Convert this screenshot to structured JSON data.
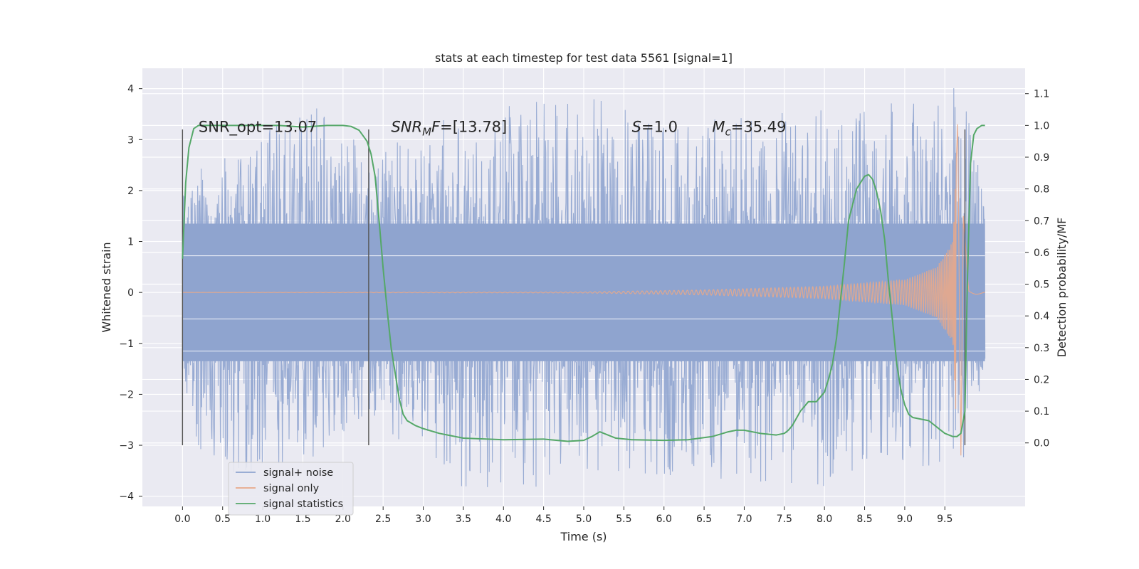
{
  "chart_data": {
    "type": "line",
    "title": "stats at each timestep for test data 5561 [signal=1]",
    "xlabel": "Time (s)",
    "ylabel": "Whitened strain",
    "ylabel_right": "Detection probability/MF",
    "xlim": [
      -0.5,
      10.5
    ],
    "ylim": [
      -4.2,
      4.4
    ],
    "ylim_right": [
      -0.2,
      1.18
    ],
    "x_ticks": [
      "0.0",
      "0.5",
      "1.0",
      "1.5",
      "2.0",
      "2.5",
      "3.0",
      "3.5",
      "4.0",
      "4.5",
      "5.0",
      "5.5",
      "6.0",
      "6.5",
      "7.0",
      "7.5",
      "8.0",
      "8.5",
      "9.0",
      "9.5"
    ],
    "y_ticks": [
      "4",
      "3",
      "2",
      "1",
      "0",
      "−1",
      "−2",
      "−3",
      "−4"
    ],
    "y_ticks_right": [
      "1.1",
      "1.0",
      "0.9",
      "0.8",
      "0.7",
      "0.6",
      "0.5",
      "0.4",
      "0.3",
      "0.2",
      "0.1",
      "0.0"
    ],
    "grid": true,
    "legend_position": "lower-left",
    "legend": [
      "signal+ noise",
      "signal only",
      "signal statistics"
    ],
    "annotations": [
      {
        "parts": [
          {
            "t": "SNR_opt=13.07",
            "i": false
          }
        ],
        "x": 0.2,
        "y": 3.15
      },
      {
        "parts": [
          {
            "t": "SNR",
            "i": true
          },
          {
            "t": "M",
            "i": true,
            "sub": true
          },
          {
            "t": "F",
            "i": true
          },
          {
            "t": "=[13.78]",
            "i": false
          }
        ],
        "x": 2.6,
        "y": 3.15
      },
      {
        "parts": [
          {
            "t": "S",
            "i": true
          },
          {
            "t": "=1.0",
            "i": false
          }
        ],
        "x": 5.6,
        "y": 3.15
      },
      {
        "parts": [
          {
            "t": "M",
            "i": true
          },
          {
            "t": "c",
            "i": true,
            "sub": true
          },
          {
            "t": "=35.49",
            "i": false
          }
        ],
        "x": 6.6,
        "y": 3.15
      }
    ],
    "vertical_markers_x": [
      0.0,
      2.32,
      9.75
    ],
    "vertical_markers_yrange": [
      -3.0,
      3.2
    ],
    "series": [
      {
        "name": "signal+ noise",
        "color": "#8fa4cf",
        "x_range": [
          0.0,
          10.0
        ],
        "envelope_upper": [
          [
            0.0,
            2.3
          ],
          [
            1.0,
            3.1
          ],
          [
            1.8,
            3.9
          ],
          [
            2.3,
            2.6
          ],
          [
            3.0,
            3.3
          ],
          [
            4.8,
            4.0
          ],
          [
            6.0,
            3.3
          ],
          [
            8.0,
            3.6
          ],
          [
            9.5,
            3.8
          ],
          [
            9.66,
            4.1
          ],
          [
            9.72,
            3.9
          ],
          [
            10.0,
            2.3
          ]
        ],
        "envelope_lower": [
          [
            0.0,
            -1.8
          ],
          [
            0.3,
            -3.6
          ],
          [
            1.4,
            -3.5
          ],
          [
            2.3,
            -2.4
          ],
          [
            3.45,
            -3.8
          ],
          [
            4.3,
            -3.85
          ],
          [
            5.3,
            -3.5
          ],
          [
            8.0,
            -3.8
          ],
          [
            9.3,
            -3.4
          ],
          [
            9.7,
            -3.85
          ],
          [
            10.0,
            -1.6
          ]
        ]
      },
      {
        "name": "signal only",
        "color": "#e8a889",
        "x_range": [
          0.0,
          10.0
        ],
        "amplitude": [
          [
            0.0,
            0.0
          ],
          [
            5.0,
            0.01
          ],
          [
            6.5,
            0.05
          ],
          [
            8.0,
            0.12
          ],
          [
            9.0,
            0.25
          ],
          [
            9.4,
            0.5
          ],
          [
            9.6,
            1.0
          ],
          [
            9.66,
            3.3
          ],
          [
            9.7,
            -3.2
          ],
          [
            9.73,
            1.5
          ],
          [
            9.8,
            0.05
          ],
          [
            10.0,
            0.02
          ]
        ]
      },
      {
        "name": "signal statistics",
        "color": "#55a868",
        "axis": "right",
        "x": [
          0.0,
          0.04,
          0.08,
          0.14,
          0.2,
          0.3,
          0.5,
          0.8,
          1.2,
          1.5,
          1.8,
          2.0,
          2.1,
          2.2,
          2.3,
          2.35,
          2.4,
          2.45,
          2.5,
          2.55,
          2.6,
          2.65,
          2.7,
          2.75,
          2.8,
          2.9,
          3.0,
          3.2,
          3.5,
          4.0,
          4.5,
          4.8,
          5.0,
          5.1,
          5.2,
          5.3,
          5.4,
          5.6,
          6.0,
          6.3,
          6.6,
          6.8,
          6.9,
          7.0,
          7.2,
          7.4,
          7.5,
          7.55,
          7.6,
          7.7,
          7.8,
          7.9,
          8.0,
          8.05,
          8.1,
          8.15,
          8.2,
          8.25,
          8.3,
          8.4,
          8.5,
          8.55,
          8.6,
          8.65,
          8.7,
          8.75,
          8.8,
          8.85,
          8.9,
          8.95,
          9.0,
          9.05,
          9.1,
          9.2,
          9.3,
          9.4,
          9.5,
          9.6,
          9.65,
          9.7,
          9.75,
          9.78,
          9.82,
          9.86,
          9.9,
          9.96,
          10.0
        ],
        "values": [
          0.58,
          0.82,
          0.93,
          0.99,
          1.0,
          1.0,
          1.0,
          1.0,
          1.0,
          0.995,
          1.0,
          1.0,
          0.997,
          0.985,
          0.95,
          0.91,
          0.84,
          0.7,
          0.55,
          0.42,
          0.3,
          0.22,
          0.14,
          0.09,
          0.07,
          0.055,
          0.045,
          0.03,
          0.015,
          0.01,
          0.012,
          0.005,
          0.008,
          0.02,
          0.035,
          0.025,
          0.015,
          0.01,
          0.008,
          0.01,
          0.02,
          0.035,
          0.04,
          0.04,
          0.03,
          0.025,
          0.03,
          0.04,
          0.055,
          0.1,
          0.13,
          0.13,
          0.16,
          0.2,
          0.25,
          0.33,
          0.45,
          0.57,
          0.7,
          0.8,
          0.84,
          0.845,
          0.83,
          0.79,
          0.73,
          0.64,
          0.5,
          0.38,
          0.25,
          0.17,
          0.12,
          0.09,
          0.08,
          0.075,
          0.07,
          0.05,
          0.03,
          0.02,
          0.02,
          0.03,
          0.1,
          0.5,
          0.88,
          0.97,
          0.99,
          1.0,
          1.0
        ]
      }
    ]
  }
}
